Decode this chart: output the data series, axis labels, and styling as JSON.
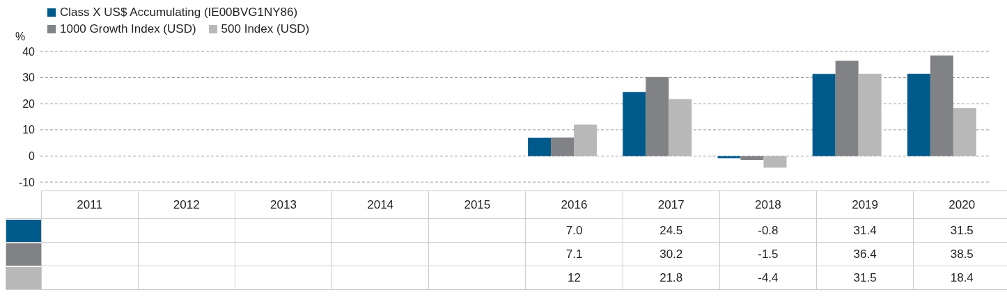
{
  "chart_data": {
    "type": "bar",
    "ylabel": "%",
    "categories": [
      "2011",
      "2012",
      "2013",
      "2014",
      "2015",
      "2016",
      "2017",
      "2018",
      "2019",
      "2020"
    ],
    "series": [
      {
        "name": "Class X US$ Accumulating (IE00BVG1NY86)",
        "color": "#005a8c",
        "values": [
          null,
          null,
          null,
          null,
          null,
          7.0,
          24.5,
          -0.8,
          31.4,
          31.5
        ],
        "value_labels": [
          null,
          null,
          null,
          null,
          null,
          "7.0",
          "24.5",
          "-0.8",
          "31.4",
          "31.5"
        ]
      },
      {
        "name": "1000 Growth Index (USD)",
        "color": "#808285",
        "values": [
          null,
          null,
          null,
          null,
          null,
          7.1,
          30.2,
          -1.5,
          36.4,
          38.5
        ],
        "value_labels": [
          null,
          null,
          null,
          null,
          null,
          "7.1",
          "30.2",
          "-1.5",
          "36.4",
          "38.5"
        ]
      },
      {
        "name": "500 Index (USD)",
        "color": "#b8b8b8",
        "values": [
          null,
          null,
          null,
          null,
          null,
          12,
          21.8,
          -4.4,
          31.5,
          18.4
        ],
        "value_labels": [
          null,
          null,
          null,
          null,
          null,
          "12",
          "21.8",
          "-4.4",
          "31.5",
          "18.4"
        ]
      }
    ],
    "ylim": [
      -10,
      40
    ],
    "yticks": [
      -10,
      0,
      10,
      20,
      30,
      40
    ],
    "grid": "y",
    "legend": "top left"
  }
}
